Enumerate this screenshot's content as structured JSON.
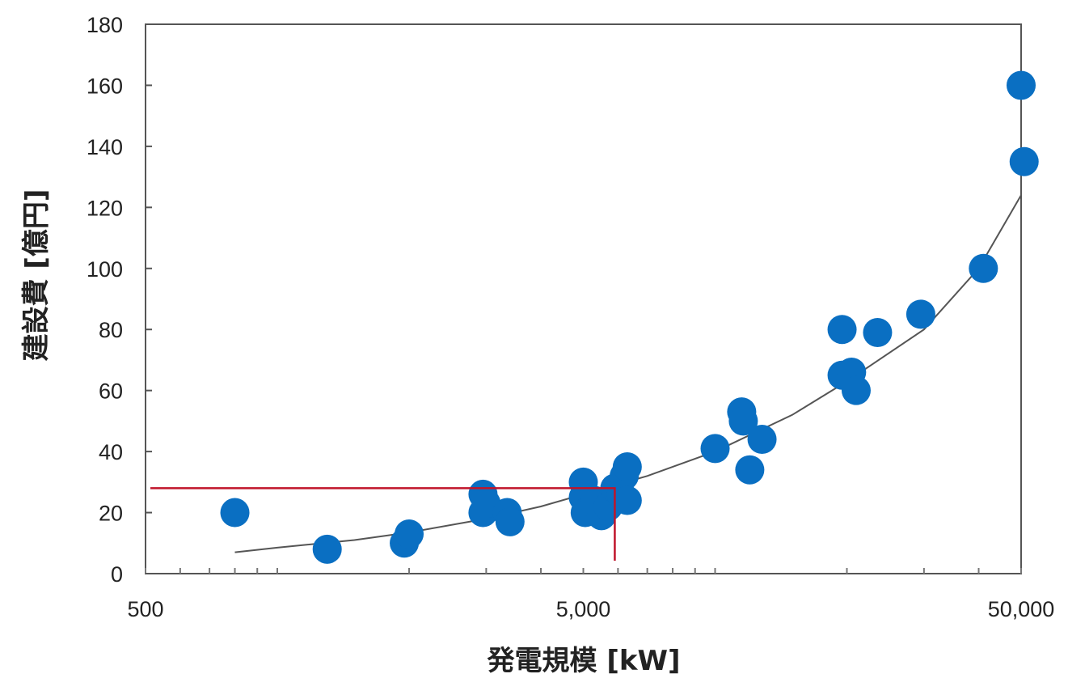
{
  "chart_data": {
    "type": "scatter",
    "title": "",
    "xlabel": "発電規模 [kW]",
    "ylabel": "建設費 [億円]",
    "x_scale": "log",
    "xlim": [
      500,
      50000
    ],
    "ylim": [
      0,
      180
    ],
    "x_tick_labels": [
      {
        "value": 500,
        "label": "500"
      },
      {
        "value": 5000,
        "label": "5,000"
      },
      {
        "value": 50000,
        "label": "50,000"
      }
    ],
    "y_ticks": [
      0,
      20,
      40,
      60,
      80,
      100,
      120,
      140,
      160,
      180
    ],
    "grid": false,
    "legend": "none",
    "colors": {
      "points": "#0a6fc2",
      "trend": "#555555",
      "reference": "#c0142a",
      "axis": "#555555"
    },
    "series": [
      {
        "points": [
          {
            "x": 800,
            "y": 20
          },
          {
            "x": 1300,
            "y": 8
          },
          {
            "x": 1950,
            "y": 10
          },
          {
            "x": 2000,
            "y": 13
          },
          {
            "x": 2950,
            "y": 26
          },
          {
            "x": 2950,
            "y": 20
          },
          {
            "x": 3000,
            "y": 23
          },
          {
            "x": 3350,
            "y": 20
          },
          {
            "x": 3400,
            "y": 17
          },
          {
            "x": 5000,
            "y": 30
          },
          {
            "x": 5000,
            "y": 25
          },
          {
            "x": 5050,
            "y": 20
          },
          {
            "x": 5300,
            "y": 24
          },
          {
            "x": 5500,
            "y": 19
          },
          {
            "x": 5700,
            "y": 22
          },
          {
            "x": 5900,
            "y": 28
          },
          {
            "x": 6100,
            "y": 26
          },
          {
            "x": 6200,
            "y": 32
          },
          {
            "x": 6300,
            "y": 35
          },
          {
            "x": 6300,
            "y": 24
          },
          {
            "x": 10000,
            "y": 41
          },
          {
            "x": 11500,
            "y": 53
          },
          {
            "x": 11600,
            "y": 50
          },
          {
            "x": 12000,
            "y": 34
          },
          {
            "x": 12800,
            "y": 44
          },
          {
            "x": 19500,
            "y": 80
          },
          {
            "x": 19500,
            "y": 65
          },
          {
            "x": 20500,
            "y": 66
          },
          {
            "x": 21000,
            "y": 60
          },
          {
            "x": 23500,
            "y": 79
          },
          {
            "x": 29500,
            "y": 85
          },
          {
            "x": 41000,
            "y": 100
          },
          {
            "x": 50000,
            "y": 160
          },
          {
            "x": 50800,
            "y": 135
          }
        ]
      }
    ],
    "trendline": [
      {
        "x": 800,
        "y": 7
      },
      {
        "x": 1000,
        "y": 8.5
      },
      {
        "x": 1500,
        "y": 11
      },
      {
        "x": 2000,
        "y": 13.5
      },
      {
        "x": 3000,
        "y": 18
      },
      {
        "x": 4000,
        "y": 22
      },
      {
        "x": 5000,
        "y": 26
      },
      {
        "x": 7000,
        "y": 32
      },
      {
        "x": 10000,
        "y": 40
      },
      {
        "x": 15000,
        "y": 52
      },
      {
        "x": 20000,
        "y": 63
      },
      {
        "x": 30000,
        "y": 80
      },
      {
        "x": 40000,
        "y": 100
      },
      {
        "x": 50000,
        "y": 124
      }
    ],
    "reference_line": {
      "x": 5900,
      "y": 28
    }
  }
}
